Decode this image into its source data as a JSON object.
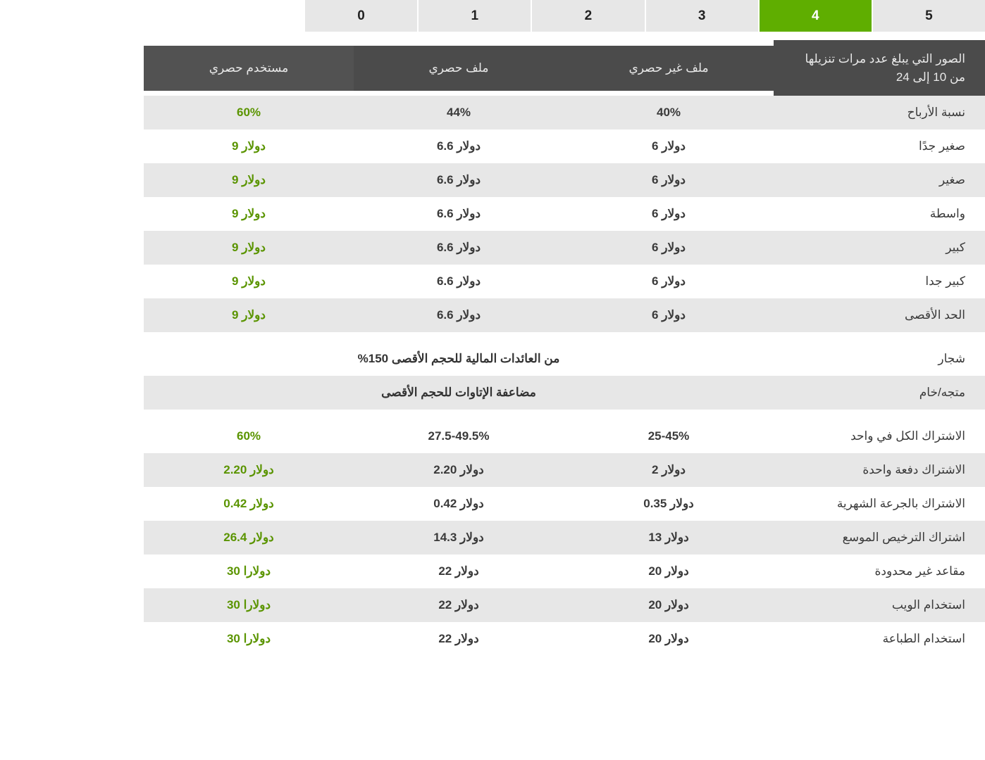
{
  "colors": {
    "tab_bg": "#e7e7e7",
    "tab_active_bg": "#5fae00",
    "tab_active_fg": "#ffffff",
    "header_bg": "#4b4b4b",
    "header_bg_last": "#525252",
    "header_fg": "#e9e9e9",
    "row_alt_bg": "#e7e7e7",
    "row_plain_bg": "#ffffff",
    "text": "#3a3a3a",
    "accent": "#5a9400"
  },
  "tabs": {
    "items": [
      "0",
      "1",
      "2",
      "3",
      "4",
      "5"
    ],
    "active_index": 4
  },
  "header": {
    "label": "الصور التي يبلغ عدد مرات تنزيلها من 10 إلى 24",
    "col1": "ملف غير حصري",
    "col2": "ملف حصري",
    "col3": "مستخدم حصري"
  },
  "rows_top": [
    {
      "label": "نسبة الأرباح",
      "c1": "40%",
      "c2": "44%",
      "c3": "60%",
      "bold": true
    },
    {
      "label": "صغير جدًا",
      "c1": "دولار 6",
      "c2": "دولار 6.6",
      "c3": "دولار 9",
      "bold": true
    },
    {
      "label": "صغير",
      "c1": "دولار 6",
      "c2": "دولار 6.6",
      "c3": "دولار 9",
      "bold": true
    },
    {
      "label": "واسطة",
      "c1": "دولار 6",
      "c2": "دولار 6.6",
      "c3": "دولار 9",
      "bold": true
    },
    {
      "label": "كبير",
      "c1": "دولار 6",
      "c2": "دولار 6.6",
      "c3": "دولار 9",
      "bold": true
    },
    {
      "label": "كبير جدا",
      "c1": "دولار 6",
      "c2": "دولار 6.6",
      "c3": "دولار 9",
      "bold": true
    },
    {
      "label": "الحد الأقصى",
      "c1": "دولار 6",
      "c2": "دولار 6.6",
      "c3": "دولار 9",
      "bold": true
    }
  ],
  "span_rows": [
    {
      "label": "شجار",
      "text": "من العائدات المالية للحجم الأقصى 150%"
    },
    {
      "label": "متجه/خام",
      "text": "مضاعفة الإتاوات للحجم الأقصى"
    }
  ],
  "rows_bottom": [
    {
      "label": "الاشتراك الكل في واحد",
      "c1": "25-45%",
      "c2": "27.5-49.5%",
      "c3": "60%",
      "bold": true
    },
    {
      "label": "الاشتراك دفعة واحدة",
      "c1": "دولار 2",
      "c2": "دولار 2.20",
      "c3": "دولار 2.20",
      "bold": true
    },
    {
      "label": "الاشتراك بالجرعة الشهرية",
      "c1": "دولار 0.35",
      "c2": "دولار 0.42",
      "c3": "دولار 0.42",
      "bold": true
    },
    {
      "label": "اشتراك الترخيص الموسع",
      "c1": "دولار 13",
      "c2": "دولار 14.3",
      "c3": "دولار 26.4",
      "bold": true
    },
    {
      "label": "مقاعد غير محدودة",
      "c1": "دولار 20",
      "c2": "دولار 22",
      "c3": "دولارا 30",
      "bold": true
    },
    {
      "label": "استخدام الويب",
      "c1": "دولار 20",
      "c2": "دولار 22",
      "c3": "دولارا 30",
      "bold": true
    },
    {
      "label": "استخدام الطباعة",
      "c1": "دولار 20",
      "c2": "دولار 22",
      "c3": "دولارا 30",
      "bold": true
    }
  ]
}
